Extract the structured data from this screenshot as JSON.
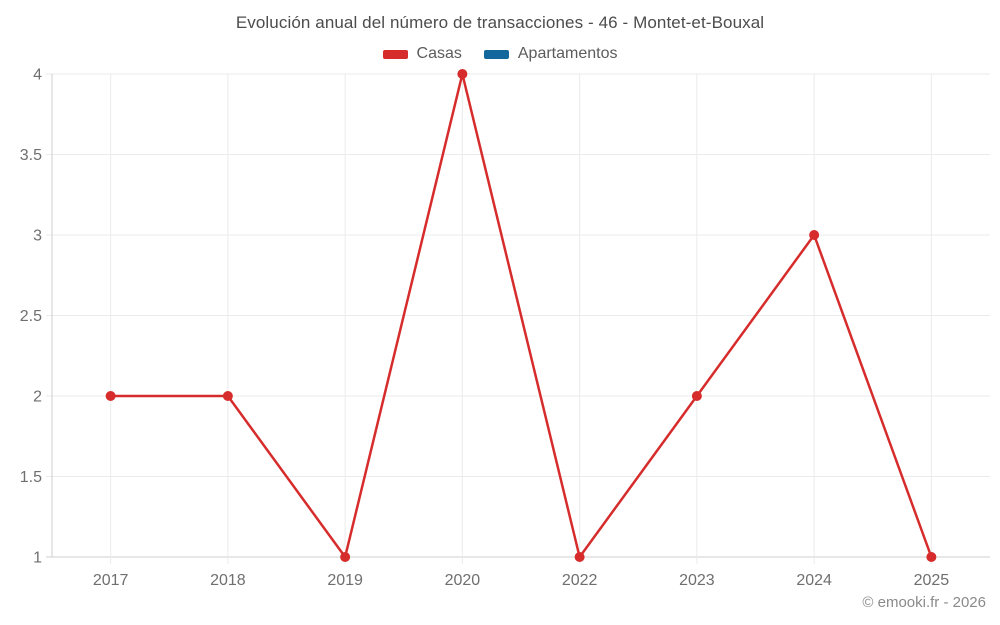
{
  "footer": {
    "copyright": "© emooki.fr - 2026"
  },
  "chart_data": {
    "type": "line",
    "title": "Evolución anual del número de transacciones - 46 - Montet-et-Bouxal",
    "categories": [
      "2017",
      "2018",
      "2019",
      "2020",
      "2022",
      "2023",
      "2024",
      "2025"
    ],
    "series": [
      {
        "name": "Casas",
        "color": "#d62c2c",
        "values": [
          2,
          2,
          1,
          4,
          1,
          2,
          3,
          1
        ]
      },
      {
        "name": "Apartamentos",
        "color": "#12689c",
        "values": []
      }
    ],
    "xlabel": "",
    "ylabel": "",
    "ylim": [
      1,
      4
    ],
    "yticks": [
      1,
      1.5,
      2,
      2.5,
      3,
      3.5,
      4
    ],
    "grid": true,
    "legend_position": "top",
    "axis_text_color": "#6f6f6f",
    "grid_color": "#ebebeb",
    "axis_line_color": "#cfcfcf",
    "point_radius": 5,
    "line_width": 2.5
  }
}
